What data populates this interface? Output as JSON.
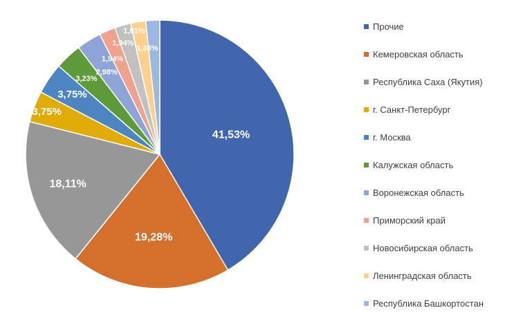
{
  "chart_data": {
    "type": "pie",
    "categories": [
      "Прочие",
      "Кемеровская область",
      "Республика Саха (Якутия)",
      "г. Санкт-Петербург",
      "г. Москва",
      "Калужская область",
      "Воронежская область",
      "Приморский край",
      "Новосибирская область",
      "Ленинградская область",
      "Республика Башкортостан"
    ],
    "values": [
      41.53,
      19.28,
      18.11,
      3.75,
      3.75,
      3.23,
      2.98,
      1.94,
      1.94,
      1.81,
      1.68
    ],
    "data_labels": [
      "41,53%",
      "19,28%",
      "18,11%",
      "3,75%",
      "3,75%",
      "3,23%",
      "2,98%",
      "1,94%",
      "1,94%",
      "1,81%",
      "1,68%"
    ],
    "colors": [
      "#4166ae",
      "#d46f2c",
      "#979797",
      "#e0aa07",
      "#4b86c2",
      "#5f9a3a",
      "#8fa4d6",
      "#f1a28e",
      "#c1c1c1",
      "#fdd08b",
      "#9bb8e0"
    ],
    "legend_position": "right"
  }
}
